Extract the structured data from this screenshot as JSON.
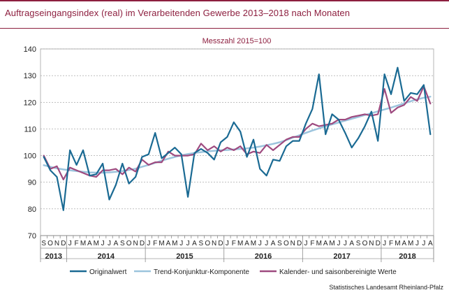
{
  "header": {
    "title": "Auftragseingangsindex (real) im Verarbeitenden Gewerbe 2013–2018 nach Monaten",
    "source": "Statistisches Landesamt Rheinland-Pfalz"
  },
  "colors": {
    "brand": "#8d1f3f",
    "original": "#1a6a93",
    "trend": "#9cc4dd",
    "seasonal": "#9e4a7f",
    "grid": "#9a9a9a"
  },
  "chart_data": {
    "type": "line",
    "subtitle": "Messzahl 2015=100",
    "ylim": [
      70,
      140
    ],
    "yticks": [
      70,
      80,
      90,
      100,
      110,
      120,
      130,
      140
    ],
    "grid": true,
    "legend_position": "bottom",
    "x": [
      "2013-09",
      "2013-10",
      "2013-11",
      "2013-12",
      "2014-01",
      "2014-02",
      "2014-03",
      "2014-04",
      "2014-05",
      "2014-06",
      "2014-07",
      "2014-08",
      "2014-09",
      "2014-10",
      "2014-11",
      "2014-12",
      "2015-01",
      "2015-02",
      "2015-03",
      "2015-04",
      "2015-05",
      "2015-06",
      "2015-07",
      "2015-08",
      "2015-09",
      "2015-10",
      "2015-11",
      "2015-12",
      "2016-01",
      "2016-02",
      "2016-03",
      "2016-04",
      "2016-05",
      "2016-06",
      "2016-07",
      "2016-08",
      "2016-09",
      "2016-10",
      "2016-11",
      "2016-12",
      "2017-01",
      "2017-02",
      "2017-03",
      "2017-04",
      "2017-05",
      "2017-06",
      "2017-07",
      "2017-08",
      "2017-09",
      "2017-10",
      "2017-11",
      "2017-12",
      "2018-01",
      "2018-02",
      "2018-03",
      "2018-04",
      "2018-05",
      "2018-06",
      "2018-07",
      "2018-08"
    ],
    "month_labels": [
      "S",
      "O",
      "N",
      "D",
      "J",
      "F",
      "M",
      "A",
      "M",
      "J",
      "J",
      "A",
      "S",
      "O",
      "N",
      "D",
      "J",
      "F",
      "M",
      "A",
      "M",
      "J",
      "J",
      "A",
      "S",
      "O",
      "N",
      "D",
      "J",
      "F",
      "M",
      "A",
      "M",
      "J",
      "J",
      "A",
      "S",
      "O",
      "N",
      "D",
      "J",
      "F",
      "M",
      "A",
      "M",
      "J",
      "J",
      "A",
      "S",
      "O",
      "N",
      "D",
      "J",
      "F",
      "M",
      "A",
      "M",
      "J",
      "J",
      "A"
    ],
    "years": [
      {
        "label": "2013",
        "from": 0,
        "to": 3
      },
      {
        "label": "2014",
        "from": 4,
        "to": 15
      },
      {
        "label": "2015",
        "from": 16,
        "to": 27
      },
      {
        "label": "2016",
        "from": 28,
        "to": 39
      },
      {
        "label": "2017",
        "from": 40,
        "to": 51
      },
      {
        "label": "2018",
        "from": 52,
        "to": 59
      }
    ],
    "series": [
      {
        "name": "Originalwert",
        "color_key": "original",
        "values": [
          99.5,
          94.5,
          92,
          79.5,
          102,
          96.5,
          102,
          92.5,
          93,
          97,
          83.5,
          89,
          97,
          89.5,
          92,
          99.5,
          100.5,
          108.5,
          99,
          101,
          103,
          100.5,
          84.5,
          101,
          102.5,
          101,
          98.5,
          105,
          107,
          112.5,
          109,
          99.5,
          106,
          95,
          92.5,
          98.5,
          98,
          103.5,
          105.5,
          105.5,
          112,
          117.5,
          130.5,
          108,
          115.5,
          113.5,
          108.5,
          103,
          106.5,
          111,
          116.5,
          105.5,
          130.5,
          123,
          133,
          120.5,
          123.5,
          123,
          126.5,
          108
        ]
      },
      {
        "name": "Trend-Konjunktur-Komponente",
        "color_key": "trend",
        "values": [
          96.4,
          95.8,
          95.2,
          94.8,
          94.5,
          94.2,
          93.9,
          93.7,
          93.6,
          93.6,
          93.7,
          93.9,
          94.2,
          94.6,
          95.1,
          95.8,
          96.5,
          97.3,
          98.1,
          98.8,
          99.5,
          100.1,
          100.6,
          101,
          101.3,
          101.6,
          101.8,
          102,
          102.1,
          102.3,
          102.5,
          102.7,
          103,
          103.4,
          103.9,
          104.4,
          105,
          105.8,
          106.7,
          107.6,
          108.5,
          109.4,
          110.2,
          111,
          111.7,
          112.4,
          113.1,
          113.8,
          114.5,
          115.2,
          115.9,
          116.6,
          117.3,
          118,
          118.8,
          119.6,
          120.4,
          121.1,
          121.7,
          122.1
        ]
      },
      {
        "name": "Kalender- und saisonbereinigte Werte",
        "color_key": "seasonal",
        "values": [
          100,
          95,
          96,
          91,
          95.5,
          94.5,
          93.5,
          92.5,
          92,
          94.5,
          94.5,
          95,
          93,
          95.5,
          94,
          98.5,
          96.5,
          97.5,
          97.5,
          101.5,
          100,
          100,
          100,
          100.5,
          104.5,
          102,
          103.5,
          101.5,
          103,
          102,
          103.5,
          100.5,
          101.5,
          101,
          104,
          102,
          104,
          106,
          107,
          107,
          110,
          112,
          111,
          111.5,
          112,
          113.5,
          113.5,
          114.5,
          115,
          115.5,
          115,
          115.5,
          125,
          116,
          118,
          119,
          122,
          120.5,
          126,
          119.5
        ]
      }
    ]
  }
}
